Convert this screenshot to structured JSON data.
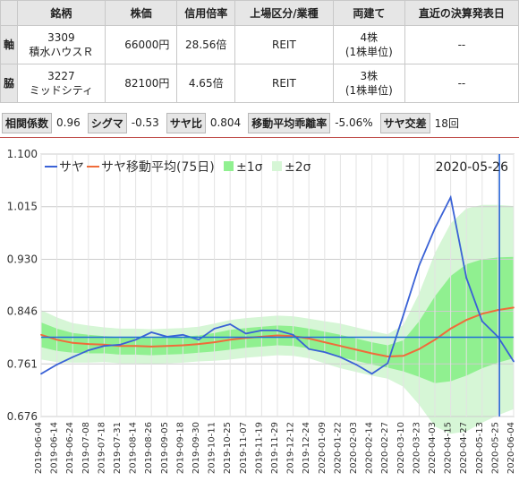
{
  "table": {
    "headers": [
      "銘柄",
      "株価",
      "信用倍率",
      "上場区分/業種",
      "両建て",
      "直近の決算発表日"
    ],
    "rows": [
      {
        "role": "軸",
        "code": "3309",
        "name": "積水ハウスＲ",
        "price": "66000円",
        "margin": "28.56倍",
        "sector": "REIT",
        "lot": "4株",
        "lot_unit": "(1株単位)",
        "earnings": "--"
      },
      {
        "role": "脇",
        "code": "3227",
        "name": "ミッドシティ",
        "price": "82100円",
        "margin": "4.65倍",
        "sector": "REIT",
        "lot": "3株",
        "lot_unit": "(1株単位)",
        "earnings": "--"
      }
    ]
  },
  "stats": [
    {
      "label": "相関係数",
      "value": "0.96"
    },
    {
      "label": "シグマ",
      "value": "-0.53"
    },
    {
      "label": "サヤ比",
      "value": "0.804"
    },
    {
      "label": "移動平均乖離率",
      "value": "-5.06%"
    },
    {
      "label": "サヤ交差",
      "value": "18回"
    }
  ],
  "chart_data": {
    "type": "line",
    "date_label": "2020-05-26",
    "ylim": [
      0.676,
      1.1
    ],
    "y_ticks": [
      "1.100",
      "1.015",
      "0.930",
      "0.846",
      "0.761",
      "0.676"
    ],
    "x_ticks": [
      "2019-06-04",
      "2019-06-14",
      "2019-06-24",
      "2019-07-08",
      "2019-07-18",
      "2019-07-31",
      "2019-08-14",
      "2019-08-26",
      "2019-09-05",
      "2019-09-18",
      "2019-09-30",
      "2019-10-11",
      "2019-10-25",
      "2019-11-07",
      "2019-11-19",
      "2019-11-29",
      "2019-12-12",
      "2019-12-24",
      "2020-01-09",
      "2020-01-22",
      "2020-02-03",
      "2020-02-14",
      "2020-02-27",
      "2020-03-10",
      "2020-03-23",
      "2020-04-03",
      "2020-04-15",
      "2020-04-27",
      "2020-05-13",
      "2020-05-25",
      "2020-06-04"
    ],
    "legend": [
      "サヤ",
      "サヤ移動平均(75日)",
      "±1σ",
      "±2σ"
    ],
    "colors": {
      "saya": "#3a62d6",
      "ma": "#f06c3a",
      "band1": "#90f090",
      "band2": "#d6f6d6",
      "hline": "#1f6fd6",
      "vline": "#1f5fd6"
    },
    "current_ratio": 0.804,
    "marker_date": "2020-05-26",
    "series": [
      {
        "name": "サヤ",
        "x_tick_index": [
          0,
          1,
          2,
          3,
          4,
          5,
          6,
          7,
          8,
          9,
          10,
          11,
          12,
          13,
          14,
          15,
          16,
          17,
          18,
          19,
          20,
          21,
          22,
          23,
          24,
          25,
          26,
          27,
          28,
          29,
          30
        ],
        "values": [
          0.745,
          0.76,
          0.772,
          0.783,
          0.79,
          0.792,
          0.8,
          0.812,
          0.805,
          0.808,
          0.8,
          0.818,
          0.825,
          0.81,
          0.815,
          0.815,
          0.808,
          0.785,
          0.78,
          0.772,
          0.76,
          0.745,
          0.762,
          0.84,
          0.92,
          0.98,
          1.03,
          0.9,
          0.83,
          0.805,
          0.765
        ]
      },
      {
        "name": "サヤ移動平均(75日)",
        "x_tick_index": [
          0,
          1,
          2,
          3,
          4,
          5,
          6,
          7,
          8,
          9,
          10,
          11,
          12,
          13,
          14,
          15,
          16,
          17,
          18,
          19,
          20,
          21,
          22,
          23,
          24,
          25,
          26,
          27,
          28,
          29,
          30
        ],
        "values": [
          0.808,
          0.8,
          0.795,
          0.793,
          0.792,
          0.79,
          0.79,
          0.789,
          0.79,
          0.791,
          0.793,
          0.796,
          0.8,
          0.803,
          0.805,
          0.807,
          0.806,
          0.802,
          0.796,
          0.79,
          0.784,
          0.778,
          0.773,
          0.774,
          0.785,
          0.8,
          0.818,
          0.832,
          0.842,
          0.848,
          0.852
        ]
      }
    ],
    "band_1sigma": [
      0.02,
      0.018,
      0.016,
      0.015,
      0.014,
      0.014,
      0.014,
      0.014,
      0.014,
      0.014,
      0.014,
      0.015,
      0.016,
      0.016,
      0.016,
      0.016,
      0.016,
      0.016,
      0.017,
      0.018,
      0.018,
      0.018,
      0.018,
      0.025,
      0.045,
      0.07,
      0.085,
      0.09,
      0.088,
      0.085,
      0.082
    ],
    "band_2sigma": [
      0.04,
      0.036,
      0.032,
      0.03,
      0.028,
      0.028,
      0.028,
      0.028,
      0.028,
      0.028,
      0.028,
      0.03,
      0.032,
      0.032,
      0.032,
      0.032,
      0.032,
      0.032,
      0.034,
      0.036,
      0.036,
      0.036,
      0.036,
      0.05,
      0.09,
      0.14,
      0.17,
      0.18,
      0.176,
      0.17,
      0.164
    ]
  }
}
